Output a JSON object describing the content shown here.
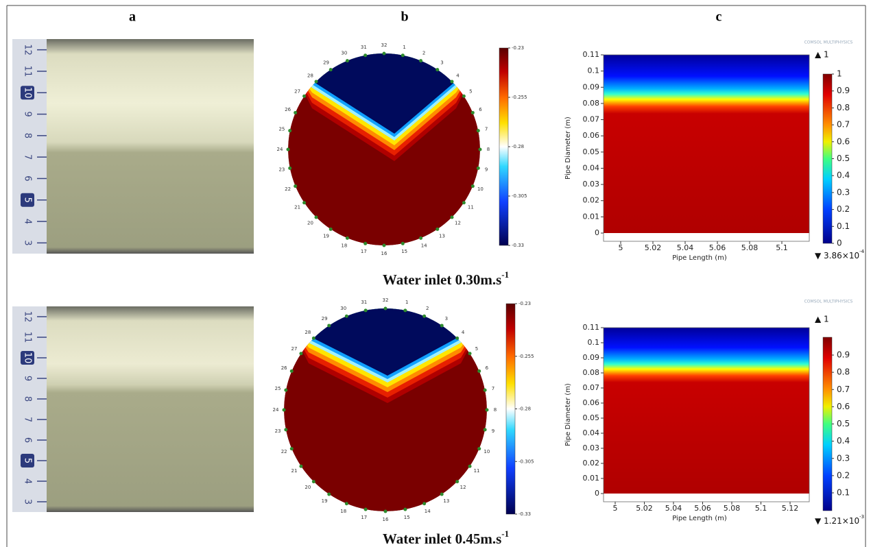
{
  "column_labels": [
    "a",
    "b",
    "c"
  ],
  "rows": [
    {
      "caption": "Water inlet 0.30m.s",
      "caption_sup": "-1",
      "photo": {
        "ruler_labels": [
          "12",
          "11",
          "10",
          "9",
          "8",
          "7",
          "6",
          "5",
          "4",
          "3"
        ]
      },
      "tomogram": {
        "electrodes": [
          1,
          2,
          3,
          4,
          5,
          6,
          7,
          8,
          9,
          10,
          11,
          12,
          13,
          14,
          15,
          16,
          17,
          18,
          19,
          20,
          21,
          22,
          23,
          24,
          25,
          26,
          27,
          28,
          29,
          30,
          31,
          32
        ],
        "colorbar_ticks": [
          -0.23,
          -0.255,
          -0.28,
          -0.305,
          -0.33
        ]
      },
      "simulation": {
        "logo": "COMSOL MULTIPHYSICS",
        "y_label": "Pipe Diameter (m)",
        "x_label": "Pipe Length (m)",
        "yticks": [
          0,
          0.01,
          0.02,
          0.03,
          0.04,
          0.05,
          0.06,
          0.07,
          0.08,
          0.09,
          0.1,
          0.11
        ],
        "xticks": [
          5,
          5.02,
          5.04,
          5.06,
          5.08,
          5.1
        ],
        "colorbar_ticks": [
          0,
          0.1,
          0.2,
          0.3,
          0.4,
          0.5,
          0.6,
          0.7,
          0.8,
          0.9,
          1
        ],
        "max_label": "▲ 1",
        "min_label": "▼ 3.86×10",
        "min_sup": "-4"
      }
    },
    {
      "caption": "Water inlet 0.45m.s",
      "caption_sup": "-1",
      "photo": {
        "ruler_labels": [
          "12",
          "11",
          "10",
          "9",
          "8",
          "7",
          "6",
          "5",
          "4",
          "3"
        ]
      },
      "tomogram": {
        "electrodes": [
          1,
          2,
          3,
          4,
          5,
          6,
          7,
          8,
          9,
          10,
          11,
          12,
          13,
          14,
          15,
          16,
          17,
          18,
          19,
          20,
          21,
          22,
          23,
          24,
          25,
          26,
          27,
          28,
          29,
          30,
          31,
          32
        ],
        "colorbar_ticks": [
          -0.23,
          -0.255,
          -0.28,
          -0.305,
          -0.33
        ]
      },
      "simulation": {
        "logo": "COMSOL MULTIPHYSICS",
        "y_label": "Pipe Diameter (m)",
        "x_label": "Pipe Length (m)",
        "yticks": [
          0,
          0.01,
          0.02,
          0.03,
          0.04,
          0.05,
          0.06,
          0.07,
          0.08,
          0.09,
          0.1,
          0.11
        ],
        "xticks": [
          5,
          5.02,
          5.04,
          5.06,
          5.08,
          5.1,
          5.12
        ],
        "colorbar_ticks": [
          0.1,
          0.2,
          0.3,
          0.4,
          0.5,
          0.6,
          0.7,
          0.8,
          0.9
        ],
        "max_label": "▲ 1",
        "min_label": "▼ 1.21×10",
        "min_sup": "-3"
      }
    }
  ]
}
